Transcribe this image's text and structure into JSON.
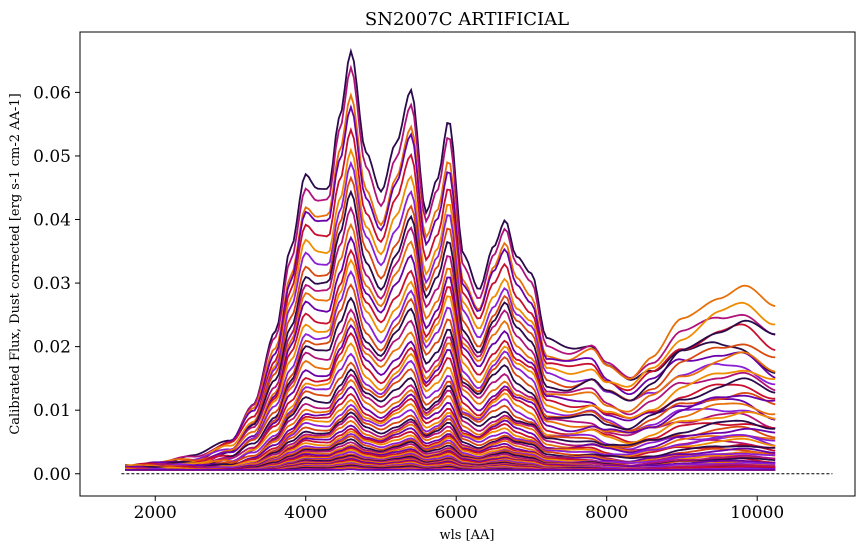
{
  "chart_data": {
    "type": "line",
    "title": "SN2007C ARTIFICIAL",
    "xlabel": "wls [AA]",
    "ylabel": "Calibrated Flux, Dust corrected [erg s-1 cm-2 AA-1]",
    "xlim": [
      1000,
      11300
    ],
    "ylim": [
      -0.0035,
      0.0695
    ],
    "xticks": [
      2000,
      4000,
      6000,
      8000,
      10000
    ],
    "xtick_labels": [
      "2000",
      "4000",
      "6000",
      "8000",
      "10000"
    ],
    "yticks": [
      0.0,
      0.01,
      0.02,
      0.03,
      0.04,
      0.05,
      0.06
    ],
    "ytick_labels": [
      "0.00",
      "0.01",
      "0.02",
      "0.03",
      "0.04",
      "0.05",
      "0.06"
    ],
    "grid": false,
    "legend": "none",
    "x_range_of_spectra": [
      1600,
      10250
    ],
    "reference_line": {
      "y": 0.0,
      "x_range": [
        1550,
        11000
      ],
      "style": "dashed"
    },
    "series_count": 60,
    "colormap": [
      "#2a0a4a",
      "#6a00a8",
      "#8b1fd6",
      "#b0127a",
      "#c8102e",
      "#d9480f",
      "#e8700a",
      "#f08c00"
    ],
    "template_spectrum": {
      "x": [
        1600,
        2000,
        2500,
        3000,
        3300,
        3600,
        3800,
        4000,
        4150,
        4300,
        4450,
        4600,
        4800,
        5000,
        5200,
        5400,
        5600,
        5750,
        5900,
        6100,
        6300,
        6500,
        6650,
        6800,
        7000,
        7200,
        7500,
        7800,
        8000,
        8300,
        8600,
        9000,
        9500,
        9800,
        10250
      ],
      "y": [
        0.0012,
        0.0016,
        0.0025,
        0.0055,
        0.011,
        0.022,
        0.035,
        0.047,
        0.045,
        0.045,
        0.056,
        0.066,
        0.05,
        0.044,
        0.052,
        0.0605,
        0.041,
        0.046,
        0.055,
        0.034,
        0.029,
        0.036,
        0.04,
        0.034,
        0.031,
        0.021,
        0.02,
        0.021,
        0.018,
        0.016,
        0.019,
        0.024,
        0.027,
        0.028,
        0.024
      ]
    },
    "peak_amplitudes": [
      0.0663,
      0.0635,
      0.0593,
      0.0578,
      0.0545,
      0.0512,
      0.0488,
      0.0462,
      0.044,
      0.0418,
      0.0395,
      0.0375,
      0.0352,
      0.0333,
      0.0314,
      0.0296,
      0.0279,
      0.0262,
      0.0246,
      0.0231,
      0.0217,
      0.0203,
      0.019,
      0.0178,
      0.0166,
      0.0155,
      0.0145,
      0.0135,
      0.0126,
      0.0118,
      0.011,
      0.0102,
      0.0095,
      0.0089,
      0.0083,
      0.0077,
      0.0072,
      0.0067,
      0.0062,
      0.0058,
      0.0054,
      0.005,
      0.0046,
      0.0043,
      0.004,
      0.0037,
      0.0034,
      0.0031,
      0.0029,
      0.0027,
      0.0025,
      0.0023,
      0.0021,
      0.0019,
      0.0017,
      0.0015,
      0.0013,
      0.0011,
      0.0009,
      0.0007
    ]
  }
}
